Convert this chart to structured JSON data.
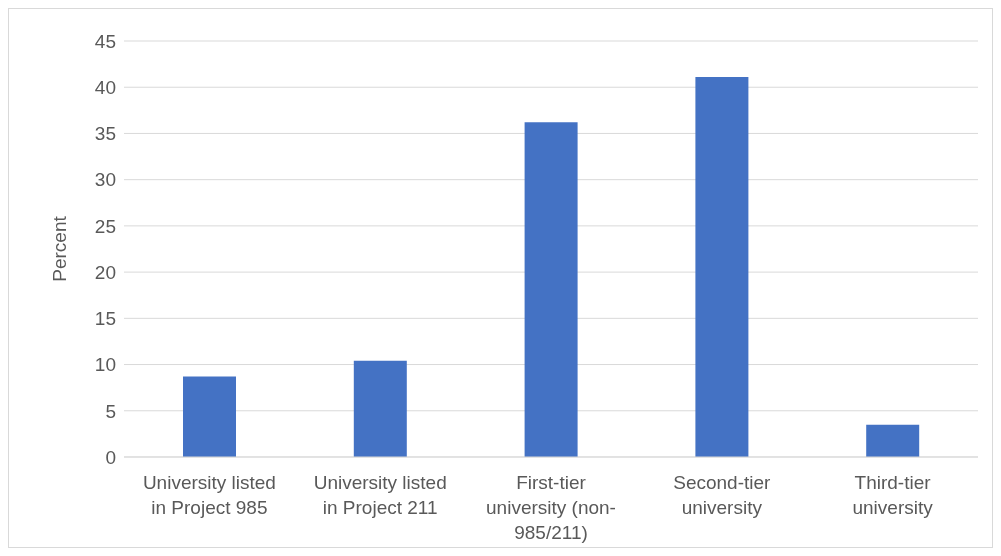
{
  "chart_data": {
    "type": "bar",
    "ylabel": "Percent",
    "categories": [
      "University listed in Project 985",
      "University listed in Project 211",
      "First-tier university (non-985/211)",
      "Second-tier university",
      "Third-tier university"
    ],
    "values": [
      8.7,
      10.4,
      36.2,
      41.1,
      3.5
    ],
    "color": "#4472c4",
    "ylim": [
      0,
      45
    ],
    "yticks": [
      0,
      5,
      10,
      15,
      20,
      25,
      30,
      35,
      40,
      45
    ],
    "grid": "y",
    "legend": false
  }
}
